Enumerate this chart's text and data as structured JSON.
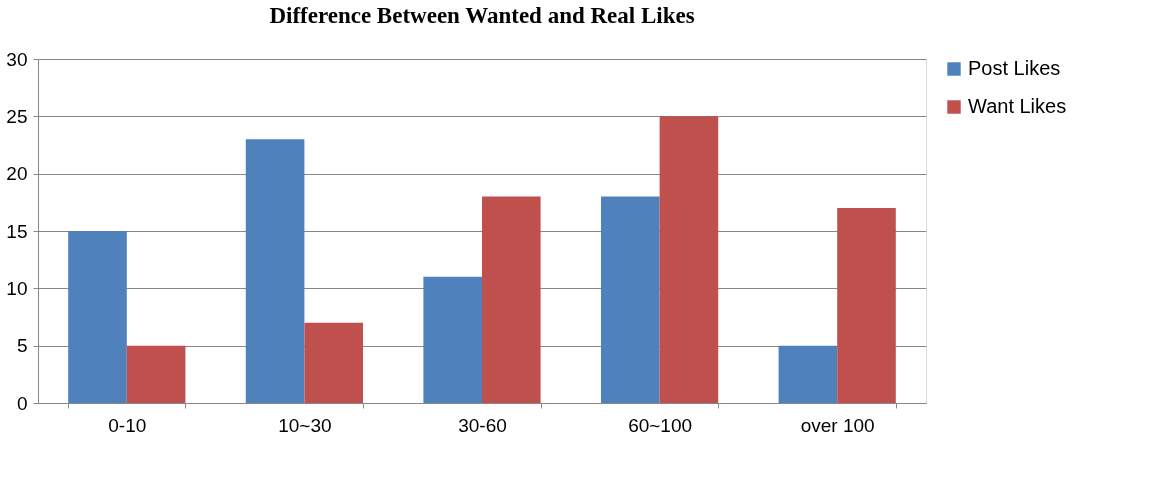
{
  "chart_data": {
    "type": "bar",
    "title": "Difference Between Wanted and Real Likes",
    "categories": [
      "0-10",
      "10~30",
      "30-60",
      "60~100",
      "over 100"
    ],
    "series": [
      {
        "name": "Post Likes",
        "color": "#4f81bd",
        "values": [
          15,
          23,
          11,
          18,
          5
        ]
      },
      {
        "name": "Want Likes",
        "color": "#c0504d",
        "values": [
          5,
          7,
          18,
          25,
          17
        ]
      }
    ],
    "ylim": [
      0,
      30
    ],
    "yticks": [
      0,
      5,
      10,
      15,
      20,
      25,
      30
    ],
    "grid": "y",
    "legend": "right"
  }
}
